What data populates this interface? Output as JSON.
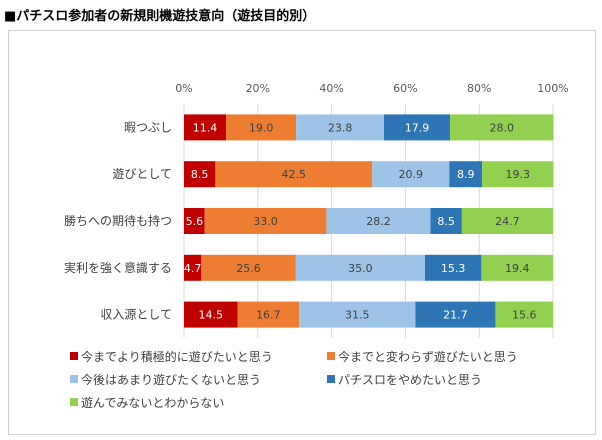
{
  "chart_data": {
    "type": "bar",
    "orientation": "horizontal",
    "stacked": "100%",
    "title": "■パチスロ参加者の新規則機遊技意向（遊技目的別）",
    "categories": [
      "暇つぶし",
      "遊びとして",
      "勝ちへの期待も持つ",
      "実利を強く意識する",
      "収入源として"
    ],
    "series": [
      {
        "name": "今までより積極的に遊びたいと思う",
        "color": "#C00000",
        "label_color": "#FFFFFF",
        "values": [
          11.4,
          8.5,
          5.6,
          4.7,
          14.5
        ]
      },
      {
        "name": "今までと変わらず遊びたいと思う",
        "color": "#ED7D31",
        "label_color": "#404040",
        "values": [
          19.0,
          42.5,
          33.0,
          25.6,
          16.7
        ]
      },
      {
        "name": "今後はあまり遊びたくないと思う",
        "color": "#9DC3E6",
        "label_color": "#404040",
        "values": [
          23.8,
          20.9,
          28.2,
          35.0,
          31.5
        ]
      },
      {
        "name": "パチスロをやめたいと思う",
        "color": "#2E75B6",
        "label_color": "#FFFFFF",
        "values": [
          17.9,
          8.9,
          8.5,
          15.3,
          21.7
        ]
      },
      {
        "name": "遊んでみないとわからない",
        "color": "#92D050",
        "label_color": "#404040",
        "values": [
          28.0,
          19.3,
          24.7,
          19.4,
          15.6
        ]
      }
    ],
    "xlim": [
      0,
      100
    ],
    "xticks": [
      "0%",
      "20%",
      "40%",
      "60%",
      "80%",
      "100%"
    ],
    "grid": true,
    "legend_position": "bottom"
  }
}
